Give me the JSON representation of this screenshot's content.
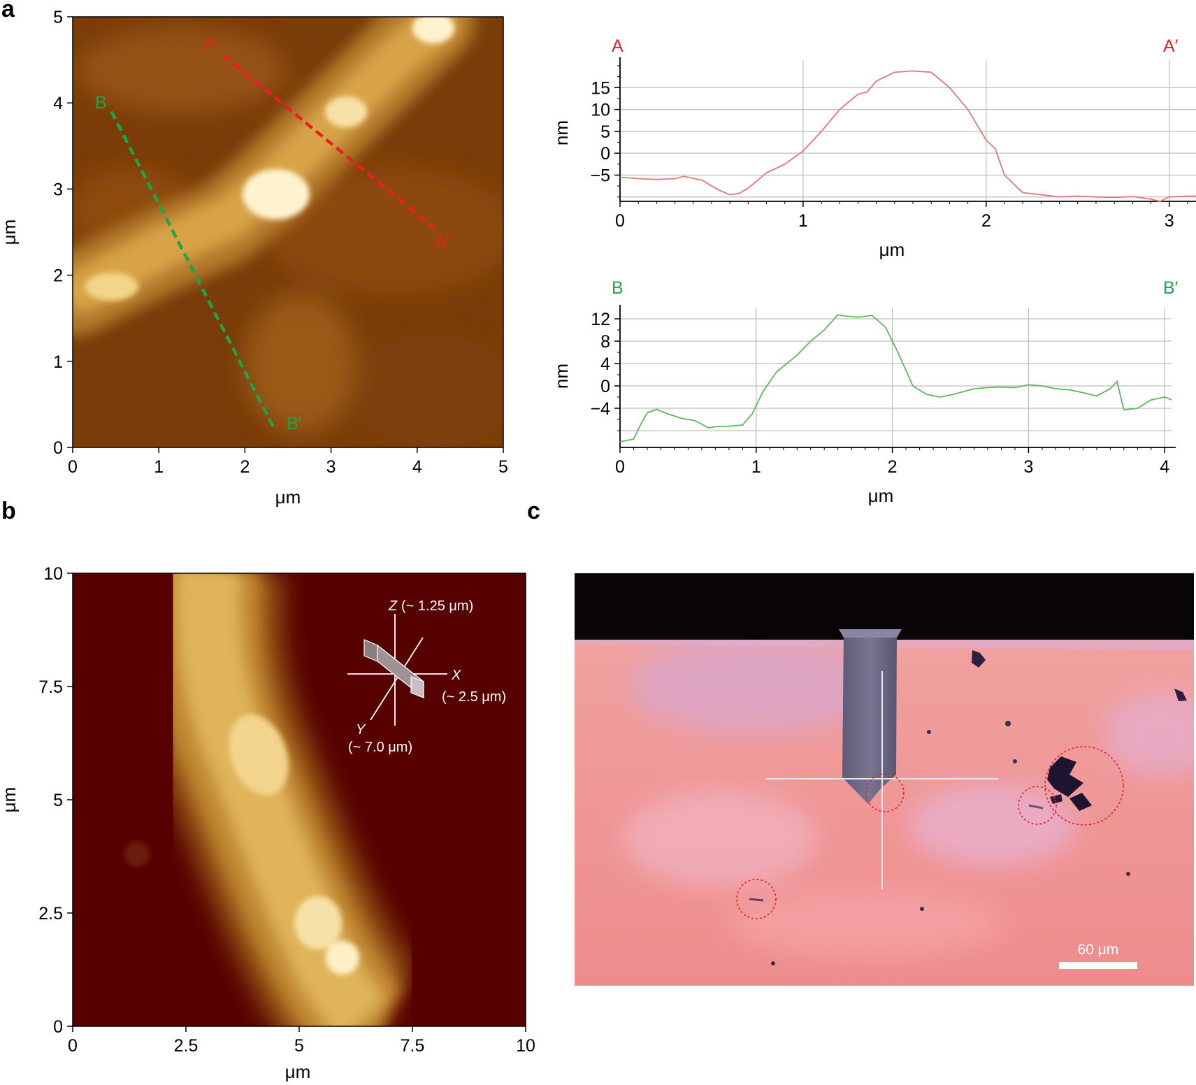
{
  "panels": {
    "a": {
      "letter": "a",
      "afm": {
        "xlabel": "μm",
        "ylabel": "μm",
        "x_ticks": [
          "0",
          "1",
          "2",
          "3",
          "4",
          "5"
        ],
        "y_ticks": [
          "0",
          "1",
          "2",
          "3",
          "4",
          "5"
        ],
        "line_a": {
          "start_label": "A",
          "end_label": "A′",
          "color": "#ee1c25",
          "start": [
            1.75,
            4.55
          ],
          "end": [
            4.2,
            2.55
          ]
        },
        "line_b": {
          "start_label": "B",
          "end_label": "B′",
          "color": "#1ca54a",
          "start": [
            0.45,
            3.9
          ],
          "end": [
            2.35,
            0.2
          ]
        }
      },
      "profile_a": {
        "left_label": "A",
        "right_label": "A′",
        "color": "#ee1c25",
        "line_color": "#e07878",
        "xlabel": "μm",
        "ylabel": "nm",
        "x_ticks": [
          "0",
          "1",
          "2",
          "3"
        ],
        "y_ticks": [
          "15",
          "10",
          "5",
          "0",
          "−5"
        ]
      },
      "profile_b": {
        "left_label": "B",
        "right_label": "B′",
        "color": "#1ca54a",
        "line_color": "#5cb85c",
        "xlabel": "μm",
        "ylabel": "nm",
        "x_ticks": [
          "0",
          "1",
          "2",
          "3",
          "4"
        ],
        "y_ticks": [
          "12",
          "8",
          "4",
          "0",
          "−4"
        ]
      }
    },
    "b": {
      "letter": "b",
      "xlabel": "μm",
      "ylabel": "μm",
      "x_ticks": [
        "0",
        "2.5",
        "5",
        "7.5",
        "10"
      ],
      "y_ticks": [
        "0",
        "2.5",
        "5",
        "7.5",
        "10"
      ],
      "inset": {
        "z_label": "Z",
        "z_value": "(~ 1.25 μm)",
        "x_label": "X",
        "x_value": "(~ 2.5 μm)",
        "y_label": "Y",
        "y_value": "(~ 7.0 μm)"
      }
    },
    "c": {
      "letter": "c",
      "scale_bar_label": "60 μm"
    }
  },
  "chart_data": [
    {
      "type": "line",
      "title": "",
      "xlabel": "μm",
      "ylabel": "nm",
      "xlim": [
        0,
        3.15
      ],
      "ylim": [
        -11,
        20
      ],
      "series": [
        {
          "name": "A–A′",
          "x": [
            0,
            0.1,
            0.2,
            0.3,
            0.35,
            0.45,
            0.5,
            0.55,
            0.6,
            0.65,
            0.7,
            0.8,
            0.9,
            1.0,
            1.1,
            1.2,
            1.3,
            1.35,
            1.4,
            1.5,
            1.6,
            1.7,
            1.8,
            1.9,
            2.0,
            2.05,
            2.1,
            2.2,
            2.3,
            2.4,
            2.5,
            2.6,
            2.7,
            2.8,
            2.9,
            2.95,
            3.0,
            3.1,
            3.15
          ],
          "y": [
            -5.5,
            -5.8,
            -6,
            -5.8,
            -5.3,
            -6.2,
            -7.5,
            -8.6,
            -9.5,
            -9.2,
            -8,
            -4.5,
            -2.5,
            0.5,
            5,
            10,
            13.5,
            14,
            16.5,
            18.5,
            18.8,
            18.5,
            15,
            10,
            3,
            1,
            -5,
            -9,
            -9.5,
            -10,
            -9.8,
            -10,
            -10.1,
            -9.9,
            -10.5,
            -11,
            -10,
            -9.8,
            -9.8
          ]
        }
      ]
    },
    {
      "type": "line",
      "title": "",
      "xlabel": "μm",
      "ylabel": "nm",
      "xlim": [
        0,
        4.05
      ],
      "ylim": [
        -11,
        13
      ],
      "series": [
        {
          "name": "B–B′",
          "x": [
            0,
            0.1,
            0.15,
            0.2,
            0.27,
            0.35,
            0.45,
            0.55,
            0.65,
            0.7,
            0.8,
            0.9,
            0.97,
            1.05,
            1.15,
            1.3,
            1.4,
            1.5,
            1.6,
            1.65,
            1.75,
            1.85,
            1.95,
            2.05,
            2.15,
            2.25,
            2.35,
            2.45,
            2.6,
            2.7,
            2.8,
            2.9,
            3.0,
            3.1,
            3.2,
            3.3,
            3.4,
            3.5,
            3.6,
            3.65,
            3.7,
            3.8,
            3.9,
            4.0,
            4.05
          ],
          "y": [
            -10,
            -9.5,
            -7,
            -4.8,
            -4.2,
            -5,
            -5.8,
            -6.2,
            -7.5,
            -7.3,
            -7.2,
            -7,
            -5,
            -1,
            2.5,
            5.5,
            8,
            10,
            12.7,
            12.5,
            12.3,
            12.6,
            10.5,
            5.5,
            0,
            -1.5,
            -2,
            -1.5,
            -0.5,
            -0.3,
            -0.2,
            -0.3,
            0.2,
            0,
            -0.5,
            -0.7,
            -1.2,
            -1.8,
            -0.5,
            0.8,
            -4.3,
            -4,
            -2.5,
            -2,
            -2.5
          ]
        }
      ]
    }
  ]
}
